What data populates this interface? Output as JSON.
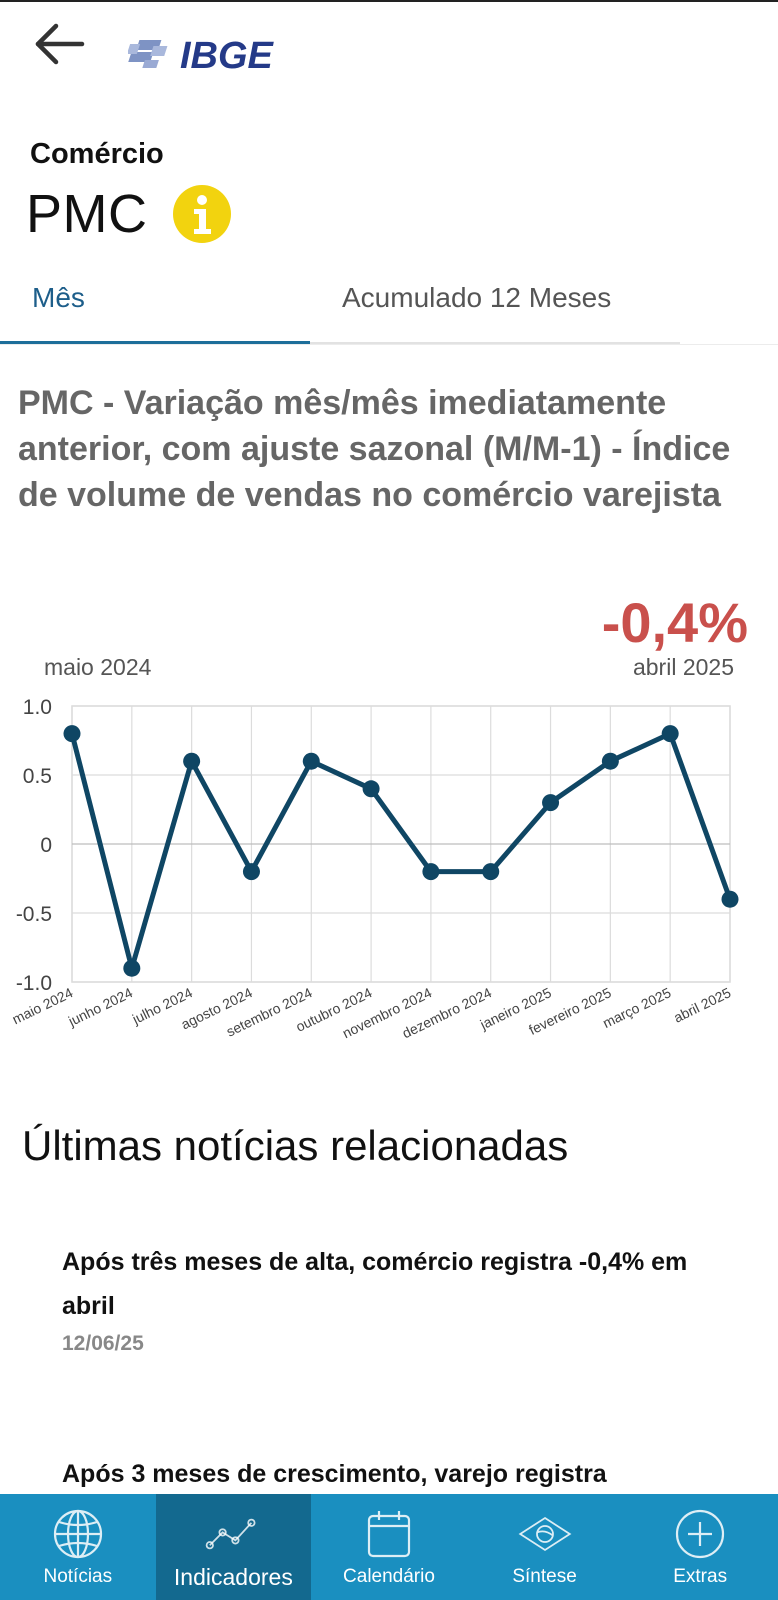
{
  "header": {
    "logo_text": "IBGE",
    "back_icon": "arrow-left-icon"
  },
  "indicator": {
    "subject": "Comércio",
    "name": "PMC",
    "info_icon": "info-icon"
  },
  "tabs": [
    {
      "label": "Mês",
      "active": true
    },
    {
      "label": "Acumulado 12 Meses",
      "active": false
    }
  ],
  "chart_section": {
    "title": "PMC - Variação mês/mês imediatamente anterior, com ajuste sazonal (M/M-1) - Índice de volume de vendas no comércio varejista",
    "latest_value": "-0,4%",
    "period_start": "maio 2024",
    "period_end": "abril 2025"
  },
  "chart_data": {
    "type": "line",
    "categories": [
      "maio 2024",
      "junho 2024",
      "julho 2024",
      "agosto 2024",
      "setembro 2024",
      "outubro 2024",
      "novembro 2024",
      "dezembro 2024",
      "janeiro 2025",
      "fevereiro 2025",
      "março 2025",
      "abril 2025"
    ],
    "series": [
      {
        "values": [
          0.8,
          -0.9,
          0.6,
          -0.2,
          0.6,
          0.4,
          -0.2,
          -0.2,
          0.3,
          0.6,
          0.8,
          -0.4
        ]
      }
    ],
    "yticks": [
      "1.0",
      "0.5",
      "0",
      "-0.5",
      "-1.0"
    ],
    "ylim": [
      -1.0,
      1.0
    ],
    "grid": true,
    "line_color": "#0f4664"
  },
  "news": {
    "heading": "Últimas notícias relacionadas",
    "items": [
      {
        "title": "Após três meses de alta, comércio registra -0,4% em abril",
        "date": "12/06/25"
      },
      {
        "title": "Após 3 meses de crescimento, varejo registra",
        "date": ""
      }
    ]
  },
  "bottom_nav": [
    {
      "label": "Notícias",
      "icon": "globe-icon",
      "active": false
    },
    {
      "label": "Indicadores",
      "icon": "line-chart-icon",
      "active": true
    },
    {
      "label": "Calendário",
      "icon": "calendar-icon",
      "active": false
    },
    {
      "label": "Síntese",
      "icon": "brazil-flag-icon",
      "active": false
    },
    {
      "label": "Extras",
      "icon": "plus-circle-icon",
      "active": false
    }
  ],
  "colors": {
    "accent": "#1d5e8a",
    "negative": "#c9504c",
    "nav_bg": "#1a8fc0",
    "nav_active_bg": "#13698f",
    "info_yellow": "#f2d30f"
  }
}
